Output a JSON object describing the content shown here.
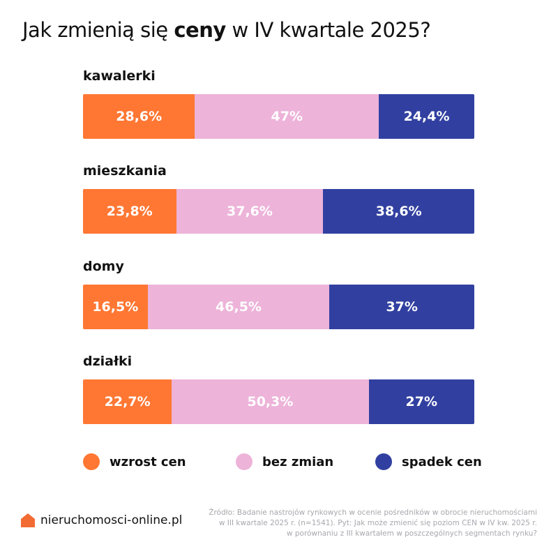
{
  "title": {
    "pre": "Jak zmienią się ",
    "bold": "ceny",
    "post": " w IV kwartale 2025?"
  },
  "chart_data": {
    "type": "bar",
    "stacked": true,
    "orientation": "horizontal",
    "percent_stacked": true,
    "categories": [
      "kawalerki",
      "mieszkania",
      "domy",
      "działki"
    ],
    "series": [
      {
        "name": "wzrost cen",
        "color": "#FF7733",
        "values": [
          28.6,
          23.8,
          16.5,
          22.7
        ],
        "labels": [
          "28,6%",
          "23,8%",
          "16,5%",
          "22,7%"
        ]
      },
      {
        "name": "bez zmian",
        "color": "#EDB3D9",
        "values": [
          47,
          37.6,
          46.5,
          50.3
        ],
        "labels": [
          "47%",
          "37,6%",
          "46,5%",
          "50,3%"
        ]
      },
      {
        "name": "spadek cen",
        "color": "#3140A0",
        "values": [
          24.4,
          38.6,
          37,
          27
        ],
        "labels": [
          "24,4%",
          "38,6%",
          "37%",
          "27%"
        ]
      }
    ],
    "legend_position": "bottom"
  },
  "footer": {
    "logo_text": "nieruchomosci-online.pl",
    "logo_color": "#F26B32",
    "source_lines": [
      "Źródło: Badanie nastrojów rynkowych w ocenie pośredników w obrocie nieruchomościami",
      "w III kwartale 2025 r. (n=1541). Pyt: Jak może zmienić się poziom CEN w IV kw. 2025 r.",
      "w porównaniu z III kwartałem w poszczególnych segmentach rynku?"
    ]
  }
}
